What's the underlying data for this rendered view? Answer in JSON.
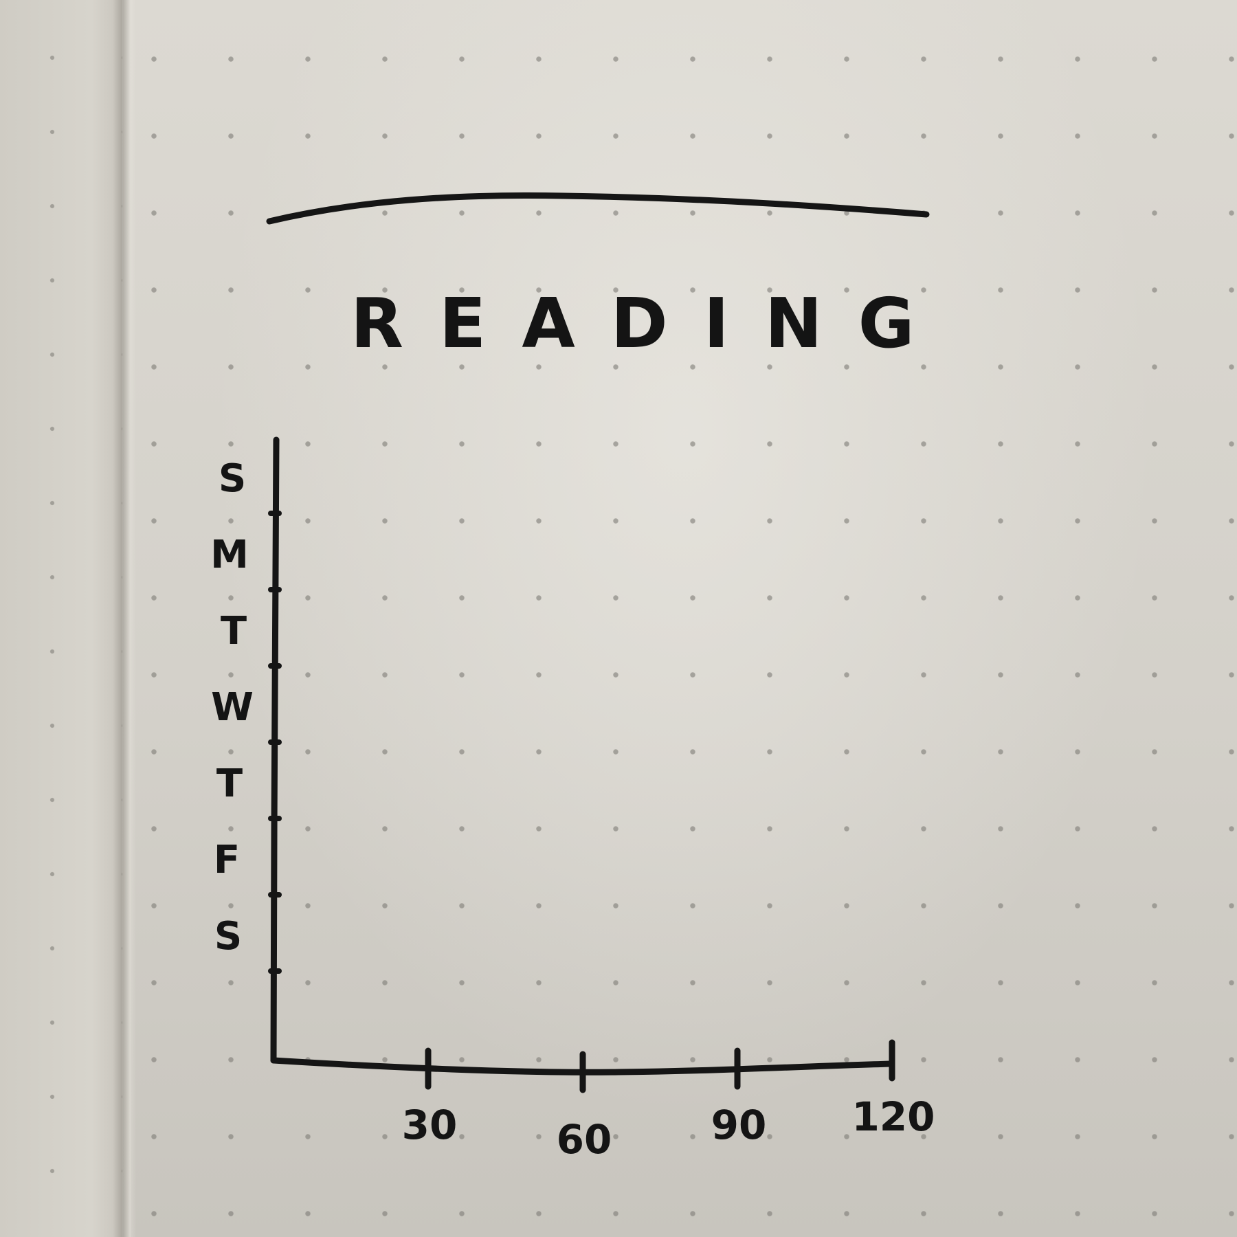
{
  "chart_data": {
    "type": "bar",
    "orientation": "horizontal",
    "title": "READING",
    "categories": [
      "S",
      "M",
      "T",
      "W",
      "T",
      "F",
      "S"
    ],
    "series": [],
    "x_ticks": [
      "30",
      "60",
      "90",
      "120"
    ],
    "xlim": [
      0,
      120
    ],
    "xlabel": "",
    "ylabel": "",
    "grid": false
  },
  "colors": {
    "ink": "#151515",
    "paper": "#d6d3cc",
    "dots": "#807e78"
  }
}
